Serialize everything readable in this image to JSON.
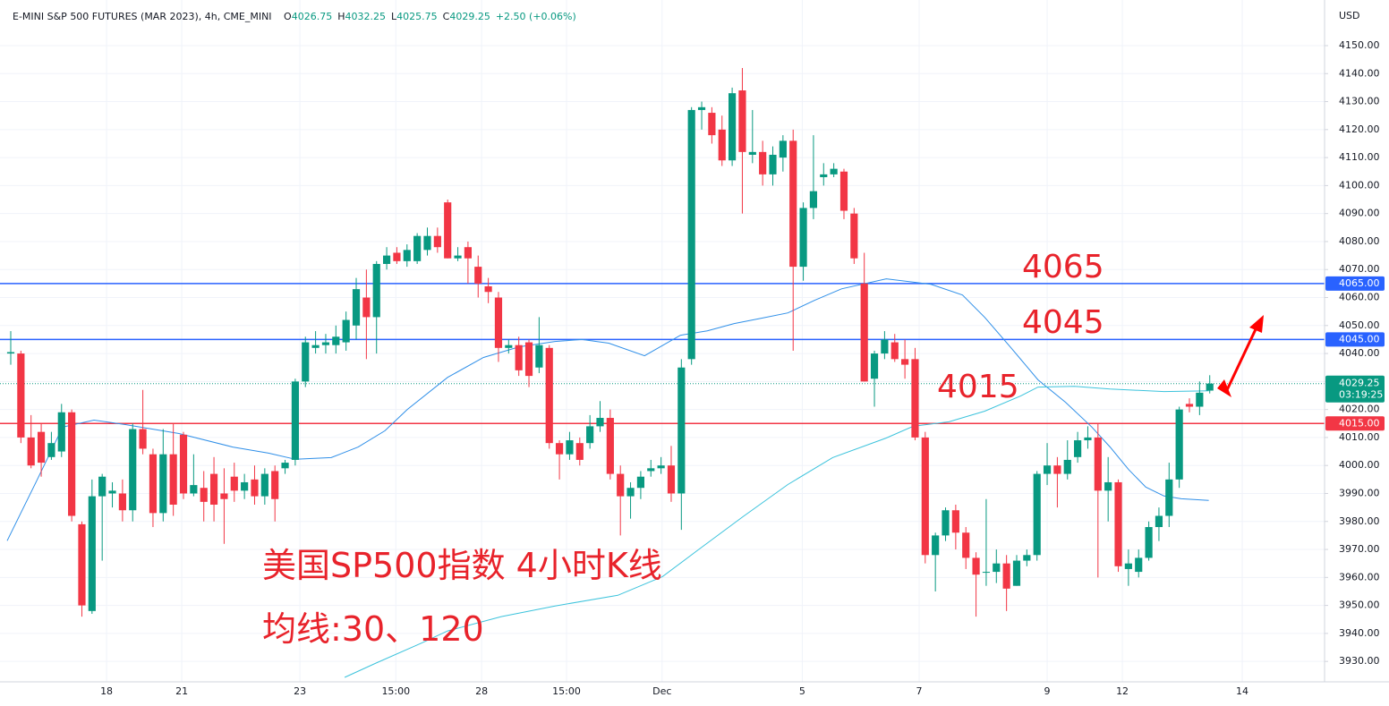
{
  "chart_data": {
    "type": "candlestick",
    "header": {
      "symbol": "E-MINI S&P 500 FUTURES (MAR 2023), 4h, CME_MINI",
      "ohlc": [
        {
          "key": "O",
          "value": "4026.75"
        },
        {
          "key": "H",
          "value": "4032.25"
        },
        {
          "key": "L",
          "value": "4025.75"
        },
        {
          "key": "C",
          "value": "4029.25"
        }
      ],
      "change": "+2.50 (+0.06%)"
    },
    "currency": "USD",
    "up_color": "#089981",
    "down_color": "#f23645",
    "open": [
      4040,
      4040,
      4010,
      4012,
      4003,
      4005,
      4019,
      3979,
      3948,
      3989,
      3990,
      3990,
      3984,
      4013,
      4004,
      3983,
      4004,
      4011,
      3990,
      3992,
      3997,
      3990,
      3996,
      3991,
      3995,
      3989,
      3998,
      3999,
      4002,
      4030,
      4042,
      4043,
      4043,
      4044,
      4050,
      4060,
      4053,
      4072,
      4076,
      4073,
      4073,
      4077,
      4082,
      4094,
      4074,
      4078,
      4071,
      4064,
      4060,
      4042,
      4043,
      4044,
      4035,
      4042,
      4008,
      4004,
      4008,
      4008,
      4014,
      4017,
      3997,
      3989,
      3992,
      3998,
      3999,
      4000,
      3990,
      4038,
      4127,
      4126,
      4120,
      4109,
      4134,
      4111,
      4112,
      4104,
      4110,
      4116,
      4071,
      4092,
      4103,
      4104,
      4105,
      4090,
      4065,
      4031,
      4040,
      4044,
      4038,
      4038,
      4010,
      3968,
      3975,
      3984,
      3976,
      3967,
      3962,
      3962,
      3965,
      3957,
      3966,
      3968,
      3997,
      4000,
      3997,
      4003,
      4009,
      4010,
      3991,
      3994,
      3963,
      3962,
      3967,
      3978,
      3982,
      3995,
      4022,
      4021,
      4026.75
    ],
    "high": [
      4048,
      4041,
      4018,
      4015,
      4012,
      4022,
      4020,
      3980,
      3995,
      3997,
      3994,
      3995,
      4015,
      4027,
      4006,
      4013,
      4015,
      4012,
      4004,
      3998,
      4003,
      3999,
      4001,
      3997,
      4000,
      3999,
      4000,
      4002,
      4031,
      4046,
      4048,
      4047,
      4050,
      4055,
      4067,
      4070,
      4073,
      4078,
      4078,
      4079,
      4083,
      4085,
      4085,
      4095,
      4078,
      4080,
      4075,
      4067,
      4062,
      4045,
      4046,
      4045,
      4053,
      4043,
      4009,
      4012,
      4010,
      4018,
      4023,
      4020,
      4000,
      3994,
      3998,
      4002,
      4003,
      4007,
      4038,
      4128,
      4130,
      4128,
      4125,
      4135,
      4142,
      4127,
      4116,
      4114,
      4118,
      4120,
      4094,
      4118,
      4108,
      4108,
      4106,
      4092,
      4076,
      4041,
      4048,
      4047,
      4045,
      4042,
      4012,
      3976,
      3985,
      3986,
      3978,
      3969,
      3988,
      3970,
      3968,
      3968,
      3970,
      3998,
      4008,
      4003,
      4009,
      4012,
      4014,
      4015,
      4003,
      3995,
      3970,
      3970,
      3980,
      3985,
      4001,
      4021,
      4024,
      4030,
      4032.25
    ],
    "low": [
      4036,
      4008,
      3999,
      3996,
      4002,
      4003,
      3980,
      3946,
      3947,
      3966,
      3985,
      3980,
      3980,
      4004,
      3978,
      3980,
      3982,
      3988,
      3989,
      3980,
      3980,
      3972,
      3987,
      3988,
      3986,
      3986,
      3980,
      3997,
      4000,
      4028,
      4040,
      4040,
      4040,
      4041,
      4045,
      4038,
      4040,
      4070,
      4072,
      4071,
      4072,
      4075,
      4076,
      4074,
      4073,
      4065,
      4060,
      4058,
      4037,
      4040,
      4032,
      4028,
      4033,
      4006,
      3995,
      4002,
      4000,
      4006,
      4012,
      3995,
      3975,
      3981,
      3988,
      3996,
      3997,
      3987,
      3977,
      4036,
      4120,
      4115,
      4107,
      4107,
      4090,
      4108,
      4100,
      4100,
      4105,
      4041,
      4066,
      4088,
      4100,
      4103,
      4088,
      4072,
      4030,
      4021,
      4038,
      4037,
      4031,
      4009,
      3965,
      3955,
      3973,
      3970,
      3963,
      3946,
      3957,
      3958,
      3948,
      3957,
      3964,
      3966,
      3993,
      3985,
      3995,
      4001,
      4006,
      3960,
      3980,
      3962,
      3957,
      3960,
      3966,
      3973,
      3978,
      3992,
      4019,
      4018,
      4025.75
    ],
    "close": [
      4040.5,
      4010,
      4000,
      4001,
      4008,
      4019,
      3982,
      3950,
      3989,
      3996,
      3991,
      3984,
      4013,
      4006,
      3983,
      4004,
      3986,
      3990,
      3993,
      3987,
      3986,
      3988,
      3991,
      3994,
      3989,
      3997,
      3988,
      4001,
      4030,
      4044,
      4043,
      4044,
      4046,
      4052,
      4063,
      4053,
      4072,
      4075,
      4073,
      4077,
      4082,
      4082,
      4078,
      4074,
      4075,
      4074,
      4065,
      4062,
      4042,
      4043,
      4034,
      4032,
      4043,
      4008,
      4004,
      4009,
      4002,
      4014,
      4017,
      3997,
      3989,
      3992,
      3996,
      3999,
      4000,
      3990,
      4035,
      4127,
      4128,
      4118,
      4109,
      4133,
      4112,
      4112,
      4104,
      4111,
      4116,
      4071,
      4092,
      4098,
      4104,
      4106,
      4091,
      4074,
      4030,
      4040,
      4045,
      4038,
      4036,
      4010,
      3968,
      3975,
      3984,
      3976,
      3967,
      3961,
      3962,
      3965,
      3956,
      3966,
      3968,
      3997,
      4000,
      3997,
      4002,
      4009,
      4010,
      3991,
      3994,
      3964,
      3965,
      3967,
      3978,
      3982,
      3995,
      4020,
      4021,
      4026,
      4029.25
    ],
    "series": [
      {
        "color": "#2f8fe8",
        "x": [
          -0.35,
          2.47,
          5.11,
          8.19,
          11.28,
          16.56,
          21.85,
          25.37,
          28.02,
          31.54,
          34.19,
          36.83,
          39.03,
          43.0,
          46.52,
          50.04,
          53.57,
          56.21,
          58.85,
          62.38,
          65.9,
          68.55,
          71.19,
          73.83,
          76.48,
          79.12,
          81.76,
          86.17,
          90.57,
          93.66,
          95.86,
          98.5,
          101.1,
          103.8,
          106.4,
          108.2,
          110.0,
          111.7,
          113.5,
          115.2,
          117.9
        ],
        "values": [
          3973.1,
          3993.9,
          4013.7,
          4016.2,
          4014.6,
          4011.4,
          4006.6,
          4004.4,
          4002.2,
          4002.8,
          4006.6,
          4012.4,
          4020,
          4031.5,
          4038.6,
          4042.4,
          4044.3,
          4045,
          4043.7,
          4039.2,
          4046.5,
          4048.1,
          4050.7,
          4052.6,
          4054.5,
          4059,
          4063.1,
          4066.7,
          4064.7,
          4060.9,
          4052.9,
          4041.8,
          4030.6,
          4022.6,
          4013.7,
          4006.6,
          3998.6,
          3992.3,
          3989.1,
          3988.1,
          3987.5
        ]
      },
      {
        "color": "#3cc3dc",
        "x": [
          32.86,
          35.95,
          40.35,
          43.0,
          48.28,
          53.57,
          59.74,
          64.14,
          67.67,
          72.07,
          76.48,
          80.88,
          86.17,
          88.81,
          92.33,
          95.86,
          99.38,
          101.1,
          104.7,
          108.2,
          113.5,
          117.9
        ],
        "values": [
          3924.3,
          3929.4,
          3936.4,
          3940.9,
          3946,
          3949.8,
          3953.6,
          3960.3,
          3969.9,
          3981.7,
          3993.2,
          4002.8,
          4009.8,
          4014,
          4015.6,
          4019.4,
          4024.8,
          4028,
          4028.3,
          4027.3,
          4026.4,
          4026.7
        ]
      }
    ],
    "levels": [
      {
        "value": 4065,
        "label": "4065.00",
        "annotation": "4065",
        "color": "#2962ff"
      },
      {
        "value": 4045,
        "label": "4045.00",
        "annotation": "4045",
        "color": "#2962ff"
      },
      {
        "value": 4015,
        "label": "4015.00",
        "annotation": "4015",
        "color": "#f23645"
      }
    ],
    "last": {
      "value": 4029.25,
      "label": "4029.25",
      "countdown": "03:19:25",
      "color": "#089981"
    },
    "xlim": [
      -1.057,
      129.3
    ],
    "xticks": [
      {
        "value": 9.43,
        "label": "18"
      },
      {
        "value": 16.83,
        "label": "21"
      },
      {
        "value": 28.46,
        "label": "23"
      },
      {
        "value": 37.9,
        "label": "15:00"
      },
      {
        "value": 46.34,
        "label": "28"
      },
      {
        "value": 54.7,
        "label": "15:00"
      },
      {
        "value": 64.1,
        "label": "Dec"
      },
      {
        "value": 77.9,
        "label": "5"
      },
      {
        "value": 89.4,
        "label": "7"
      },
      {
        "value": 102,
        "label": "9"
      },
      {
        "value": 109.4,
        "label": "12"
      },
      {
        "value": 121.2,
        "label": "14"
      }
    ],
    "ylim": [
      3922.7,
      4166.3
    ],
    "yticks": [
      {
        "value": 3930,
        "label": "3930.00"
      },
      {
        "value": 3940,
        "label": "3940.00"
      },
      {
        "value": 3950,
        "label": "3950.00"
      },
      {
        "value": 3960,
        "label": "3960.00"
      },
      {
        "value": 3970,
        "label": "3970.00"
      },
      {
        "value": 3980,
        "label": "3980.00"
      },
      {
        "value": 3990,
        "label": "3990.00"
      },
      {
        "value": 4000,
        "label": "4000.00"
      },
      {
        "value": 4010,
        "label": "4010.00"
      },
      {
        "value": 4020,
        "label": "4020.00"
      },
      {
        "value": 4030,
        "label": "4030.00"
      },
      {
        "value": 4040,
        "label": "4040.00"
      },
      {
        "value": 4050,
        "label": "4050.00"
      },
      {
        "value": 4060,
        "label": "4060.00"
      },
      {
        "value": 4070,
        "label": "4070.00"
      },
      {
        "value": 4080,
        "label": "4080.00"
      },
      {
        "value": 4090,
        "label": "4090.00"
      },
      {
        "value": 4100,
        "label": "4100.00"
      },
      {
        "value": 4110,
        "label": "4110.00"
      },
      {
        "value": 4120,
        "label": "4120.00"
      },
      {
        "value": 4130,
        "label": "4130.00"
      },
      {
        "value": 4140,
        "label": "4140.00"
      },
      {
        "value": 4150,
        "label": "4150.00"
      }
    ],
    "grid": true,
    "notes": [
      "美国SP500指数 4小时K线",
      "均线:30、120"
    ]
  }
}
